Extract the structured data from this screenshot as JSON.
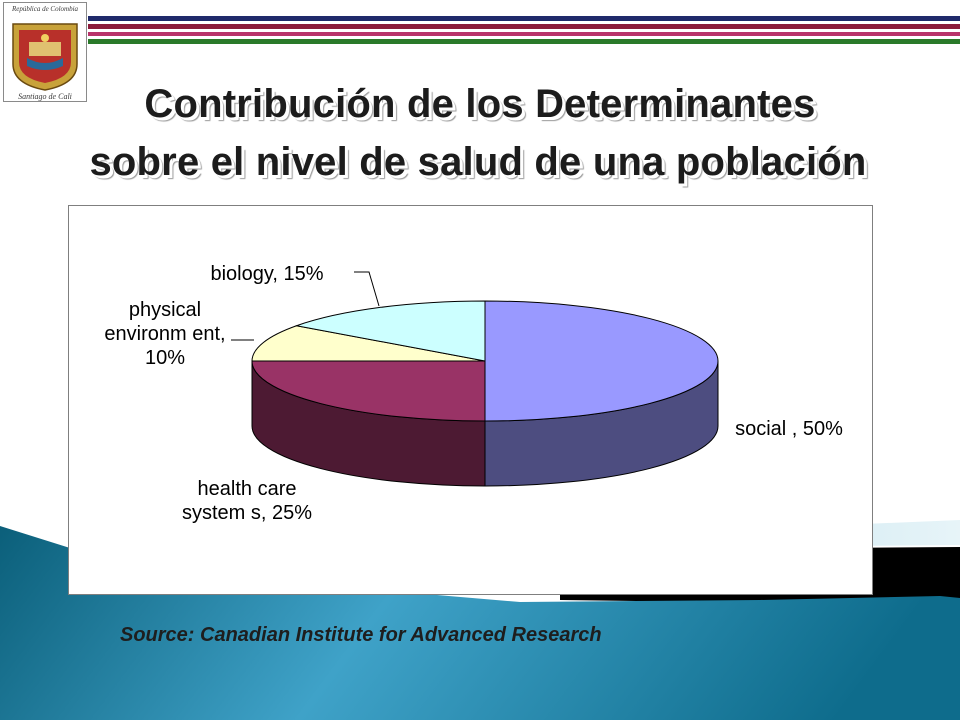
{
  "slide": {
    "title_line_1": "Contribución de los Determinantes",
    "title_line_2": "sobre el nivel de salud de una población",
    "source": "Source: Canadian Institute for Advanced Research"
  },
  "logo": {
    "emblem_text_top": "República de Colombia",
    "emblem_text_bottom": "Santiago de Cali"
  },
  "colors": {
    "stripe_navy": "#1f2a6b",
    "stripe_maroon": "#8b1a3a",
    "stripe_green": "#2a7a2a",
    "teal_dark": "#0e6680",
    "teal_light": "#86c7e0",
    "social": "#9999ff",
    "health_care": "#993366",
    "physical": "#ffffcc",
    "biology": "#ccffff"
  },
  "chart_data": {
    "type": "pie",
    "three_d": true,
    "categories": [
      "social",
      "health care systems",
      "physical environment",
      "biology"
    ],
    "values": [
      50,
      25,
      10,
      15
    ],
    "labels": [
      "social , 50%",
      "health care systems, 25%",
      "physical environment, 10%",
      "biology, 15%"
    ],
    "label_lines": [
      [
        "social , 50%"
      ],
      [
        "health care",
        "system s, 25%"
      ],
      [
        "physical",
        "environm ent,",
        "10%"
      ],
      [
        "biology, 15%"
      ]
    ],
    "colors": [
      "#9999ff",
      "#993366",
      "#ffffcc",
      "#ccffff"
    ],
    "side_colors": [
      "#4d4d80",
      "#4d1a33",
      "#80806a",
      "#6a8080"
    ],
    "legend": "none"
  }
}
